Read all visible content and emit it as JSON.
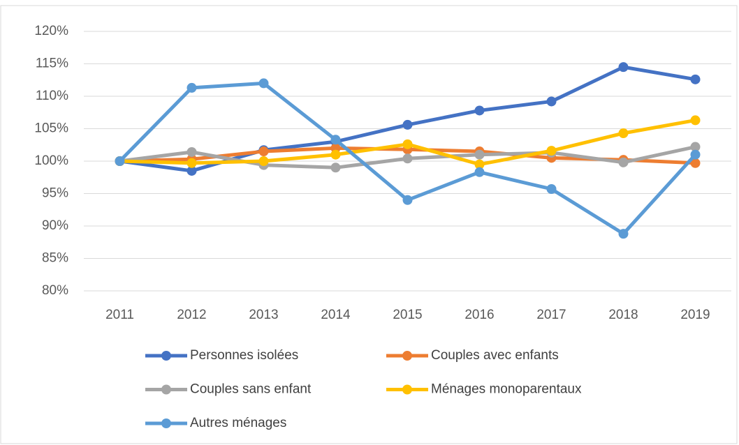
{
  "chart_data": {
    "type": "line",
    "categories": [
      "2011",
      "2012",
      "2013",
      "2014",
      "2015",
      "2016",
      "2017",
      "2018",
      "2019"
    ],
    "series": [
      {
        "name": "Personnes isolées",
        "color": "#4472c4",
        "values": [
          100,
          98.5,
          101.7,
          103,
          105.6,
          107.8,
          109.2,
          114.5,
          112.6
        ]
      },
      {
        "name": "Couples avec enfants",
        "color": "#ed7d31",
        "values": [
          100,
          100.3,
          101.5,
          102,
          101.8,
          101.5,
          100.5,
          100.2,
          99.7
        ]
      },
      {
        "name": "Couples sans enfant",
        "color": "#a5a5a5",
        "values": [
          100,
          101.4,
          99.4,
          99,
          100.4,
          101,
          101.3,
          99.8,
          102.2
        ]
      },
      {
        "name": "Ménages monoparentaux",
        "color": "#ffc000",
        "values": [
          100,
          99.7,
          100,
          101,
          102.6,
          99.5,
          101.6,
          104.3,
          106.3
        ]
      },
      {
        "name": "Autres ménages",
        "color": "#5b9bd5",
        "values": [
          100,
          111.3,
          112,
          103.3,
          94,
          98.3,
          95.7,
          88.8,
          101
        ]
      }
    ],
    "ylim": [
      80,
      120
    ],
    "yticks": [
      {
        "value": 80,
        "label": "80%"
      },
      {
        "value": 85,
        "label": "85%"
      },
      {
        "value": 90,
        "label": "90%"
      },
      {
        "value": 95,
        "label": "95%"
      },
      {
        "value": 100,
        "label": "100%"
      },
      {
        "value": 105,
        "label": "105%"
      },
      {
        "value": 110,
        "label": "110%"
      },
      {
        "value": 115,
        "label": "115%"
      },
      {
        "value": 120,
        "label": "120%"
      }
    ],
    "grid": true,
    "legend": "bottom"
  }
}
